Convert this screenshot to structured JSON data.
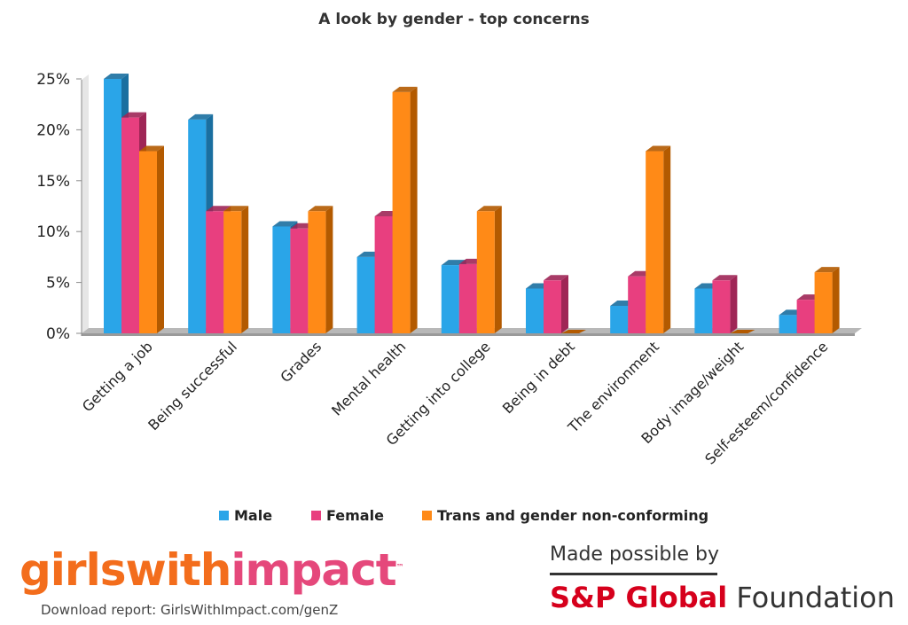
{
  "colors": {
    "male": "#2aa5e8",
    "male_dark": "#1a6fa0",
    "female": "#e83f7f",
    "female_dark": "#9f2656",
    "trans": "#ff8a17",
    "trans_dark": "#b35a00",
    "brand_orange": "#f36d1c",
    "brand_pink": "#e5487b",
    "sponsor_red": "#d6001c"
  },
  "chart_data": {
    "type": "bar",
    "title": "A look by gender - top concerns",
    "categories": [
      "Getting a job",
      "Being successful",
      "Grades",
      "Mental health",
      "Getting into college",
      "Being in debt",
      "The environment",
      "Body image/weight",
      "Self-esteem/confidence"
    ],
    "series": [
      {
        "name": "Male",
        "values": [
          25,
          21,
          10.5,
          7.5,
          6.7,
          4.4,
          2.7,
          4.4,
          1.8
        ]
      },
      {
        "name": "Female",
        "values": [
          21.2,
          12,
          10.3,
          11.5,
          6.8,
          5.2,
          5.6,
          5.2,
          3.3
        ]
      },
      {
        "name": "Trans and gender non-conforming",
        "values": [
          17.9,
          12,
          12,
          23.7,
          12,
          0,
          17.9,
          0,
          6
        ]
      }
    ],
    "ylim": [
      0,
      25
    ],
    "yticks": [
      "0%",
      "5%",
      "10%",
      "15%",
      "20%",
      "25%"
    ],
    "grid": false,
    "legend_position": "bottom"
  },
  "branding": {
    "logo_part1": "girls",
    "logo_part2": "with",
    "logo_part3": "impact",
    "download_text": "Download report: GirlsWithImpact.com/genZ",
    "made_possible": "Made possible by",
    "sponsor_name": "S&P Global",
    "sponsor_suffix": "Foundation"
  }
}
